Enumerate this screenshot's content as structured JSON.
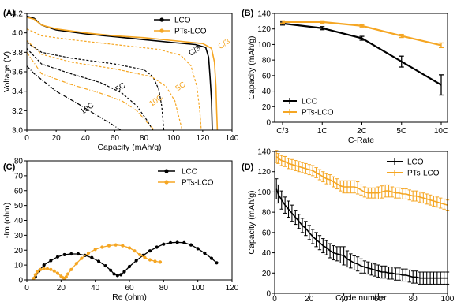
{
  "colors": {
    "lco": "#000000",
    "pts": "#F5A623"
  },
  "chart_data": [
    {
      "panel": "(A)",
      "type": "line",
      "xlabel": "Capacity (mAh/g)",
      "ylabel": "Voltage (V)",
      "xlim": [
        0,
        140
      ],
      "ylim": [
        3.0,
        4.2
      ],
      "xticks": [
        "0",
        "20",
        "40",
        "60",
        "80",
        "100",
        "120",
        "140"
      ],
      "yticks": [
        "3.0",
        "3.2",
        "3.4",
        "3.6",
        "3.8",
        "4.0",
        "4.2"
      ],
      "legend": [
        "LCO",
        "PTs-LCO"
      ],
      "legend_position": "top-right",
      "annotations": [
        {
          "text": "C/3",
          "x": 112,
          "y": 3.76,
          "series": "LCO"
        },
        {
          "text": "C/3",
          "x": 132,
          "y": 3.83,
          "series": "PTs-LCO"
        },
        {
          "text": "5C",
          "x": 62,
          "y": 3.39,
          "series": "LCO"
        },
        {
          "text": "5C",
          "x": 103,
          "y": 3.4,
          "series": "PTs-LCO"
        },
        {
          "text": "10C",
          "x": 38,
          "y": 3.16,
          "series": "LCO"
        },
        {
          "text": "10C",
          "x": 85,
          "y": 3.24,
          "series": "PTs-LCO"
        }
      ],
      "series": [
        {
          "name": "LCO",
          "rate": "C/3",
          "style": "solid",
          "points": [
            [
              0,
              4.17
            ],
            [
              5,
              4.15
            ],
            [
              10,
              4.08
            ],
            [
              20,
              4.03
            ],
            [
              40,
              3.99
            ],
            [
              60,
              3.96
            ],
            [
              80,
              3.93
            ],
            [
              100,
              3.9
            ],
            [
              115,
              3.88
            ],
            [
              122,
              3.85
            ],
            [
              124,
              3.75
            ],
            [
              125,
              3.55
            ],
            [
              126,
              3.3
            ],
            [
              126.5,
              3.0
            ]
          ]
        },
        {
          "name": "PTs-LCO",
          "rate": "C/3",
          "style": "solid",
          "points": [
            [
              0,
              4.16
            ],
            [
              5,
              4.14
            ],
            [
              10,
              4.08
            ],
            [
              20,
              4.04
            ],
            [
              40,
              4.0
            ],
            [
              60,
              3.97
            ],
            [
              80,
              3.95
            ],
            [
              100,
              3.92
            ],
            [
              120,
              3.89
            ],
            [
              126,
              3.84
            ],
            [
              128,
              3.7
            ],
            [
              129,
              3.45
            ],
            [
              129.5,
              3.2
            ],
            [
              130,
              3.0
            ]
          ]
        },
        {
          "name": "PTs-LCO",
          "rate": "",
          "style": "dashed",
          "points": [
            [
              0,
              4.04
            ],
            [
              10,
              3.97
            ],
            [
              30,
              3.93
            ],
            [
              60,
              3.88
            ],
            [
              90,
              3.83
            ],
            [
              105,
              3.77
            ],
            [
              112,
              3.66
            ],
            [
              116,
              3.45
            ],
            [
              118,
              3.2
            ],
            [
              119,
              3.0
            ]
          ]
        },
        {
          "name": "LCO",
          "rate": "",
          "style": "dashed",
          "points": [
            [
              0,
              3.9
            ],
            [
              10,
              3.8
            ],
            [
              30,
              3.74
            ],
            [
              60,
              3.68
            ],
            [
              80,
              3.62
            ],
            [
              86,
              3.55
            ],
            [
              90,
              3.42
            ],
            [
              92,
              3.25
            ],
            [
              93.5,
              3.0
            ]
          ]
        },
        {
          "name": "PTs-LCO",
          "rate": "5C",
          "style": "dashed",
          "points": [
            [
              0,
              3.92
            ],
            [
              10,
              3.78
            ],
            [
              30,
              3.7
            ],
            [
              60,
              3.63
            ],
            [
              85,
              3.55
            ],
            [
              95,
              3.45
            ],
            [
              101,
              3.3
            ],
            [
              104,
              3.12
            ],
            [
              106,
              3.0
            ]
          ]
        },
        {
          "name": "LCO",
          "rate": "5C",
          "style": "dashed",
          "points": [
            [
              0,
              3.84
            ],
            [
              10,
              3.68
            ],
            [
              30,
              3.58
            ],
            [
              50,
              3.49
            ],
            [
              65,
              3.38
            ],
            [
              75,
              3.25
            ],
            [
              82,
              3.1
            ],
            [
              86,
              3.0
            ]
          ]
        },
        {
          "name": "PTs-LCO",
          "rate": "10C",
          "style": "dashdot",
          "points": [
            [
              0,
              3.8
            ],
            [
              10,
              3.58
            ],
            [
              30,
              3.47
            ],
            [
              50,
              3.38
            ],
            [
              65,
              3.3
            ],
            [
              75,
              3.2
            ],
            [
              82,
              3.08
            ],
            [
              87,
              3.0
            ]
          ]
        },
        {
          "name": "LCO",
          "rate": "10C",
          "style": "dashdot",
          "points": [
            [
              0,
              3.66
            ],
            [
              5,
              3.58
            ],
            [
              20,
              3.4
            ],
            [
              35,
              3.27
            ],
            [
              48,
              3.15
            ],
            [
              58,
              3.06
            ],
            [
              64,
              3.0
            ]
          ]
        }
      ]
    },
    {
      "panel": "(B)",
      "type": "line",
      "xlabel": "C-Rate",
      "ylabel": "Capacity (mAh/g)",
      "categories": [
        "C/3",
        "1C",
        "2C",
        "5C",
        "10C"
      ],
      "ylim": [
        0,
        140
      ],
      "yticks": [
        "0",
        "20",
        "40",
        "60",
        "80",
        "100",
        "120",
        "140"
      ],
      "legend_position": "bottom-left",
      "series": [
        {
          "name": "LCO",
          "values": [
            127,
            121,
            108,
            78,
            48
          ],
          "errors": [
            2,
            2,
            2.5,
            7,
            13
          ]
        },
        {
          "name": "PTs-LCO",
          "values": [
            129,
            129,
            124,
            111,
            99
          ],
          "errors": [
            1.5,
            1.5,
            1.5,
            2,
            3
          ]
        }
      ]
    },
    {
      "panel": "(C)",
      "type": "scatter",
      "xlabel": "Re (ohm)",
      "ylabel": "-Im (ohm)",
      "xlim": [
        0,
        120
      ],
      "ylim": [
        0,
        80
      ],
      "xticks": [
        "0",
        "20",
        "40",
        "60",
        "80",
        "100",
        "120"
      ],
      "yticks": [
        "0",
        "10",
        "20",
        "30",
        "40",
        "50",
        "60",
        "70",
        "80"
      ],
      "legend_position": "top-right",
      "series": [
        {
          "name": "LCO",
          "points": [
            [
              5,
              2
            ],
            [
              7,
              6
            ],
            [
              10,
              10
            ],
            [
              14,
              13
            ],
            [
              18,
              15.5
            ],
            [
              22,
              17
            ],
            [
              26,
              17.5
            ],
            [
              30,
              17.5
            ],
            [
              34,
              16.5
            ],
            [
              38,
              15
            ],
            [
              42,
              12.5
            ],
            [
              46,
              9.5
            ],
            [
              49,
              6.5
            ],
            [
              51,
              4
            ],
            [
              53,
              3
            ],
            [
              55,
              3.5
            ],
            [
              57,
              5.5
            ],
            [
              60,
              9
            ],
            [
              64,
              13
            ],
            [
              68,
              16.5
            ],
            [
              72,
              19.5
            ],
            [
              76,
              22
            ],
            [
              80,
              24
            ],
            [
              84,
              25
            ],
            [
              88,
              25.2
            ],
            [
              92,
              25
            ],
            [
              96,
              23.5
            ],
            [
              100,
              21
            ],
            [
              104,
              18
            ],
            [
              108,
              14.5
            ],
            [
              111,
              11.5
            ]
          ]
        },
        {
          "name": "PTs-LCO",
          "points": [
            [
              4,
              1
            ],
            [
              5,
              3.5
            ],
            [
              6,
              5.5
            ],
            [
              8,
              7
            ],
            [
              10,
              7.5
            ],
            [
              12,
              7.5
            ],
            [
              14,
              7
            ],
            [
              16,
              6
            ],
            [
              18,
              4.5
            ],
            [
              20,
              2.5
            ],
            [
              21,
              1.5
            ],
            [
              22,
              1
            ],
            [
              23,
              2
            ],
            [
              24,
              4
            ],
            [
              26,
              7
            ],
            [
              29,
              11
            ],
            [
              32,
              14.5
            ],
            [
              36,
              18
            ],
            [
              40,
              20.5
            ],
            [
              44,
              22
            ],
            [
              48,
              23
            ],
            [
              52,
              23.5
            ],
            [
              56,
              23
            ],
            [
              60,
              21.5
            ],
            [
              63,
              19.5
            ],
            [
              66,
              17
            ],
            [
              69,
              15
            ],
            [
              72,
              13.5
            ],
            [
              75,
              12.5
            ],
            [
              78,
              12
            ]
          ]
        }
      ]
    },
    {
      "panel": "(D)",
      "type": "line",
      "xlabel": "Cycle number",
      "ylabel": "Capacity (mAh/g)",
      "xlim": [
        0,
        100
      ],
      "ylim": [
        0,
        140
      ],
      "xticks": [
        "0",
        "20",
        "40",
        "60",
        "80",
        "100"
      ],
      "yticks": [
        "0",
        "20",
        "40",
        "60",
        "80",
        "100",
        "120",
        "140"
      ],
      "legend_position": "top-right",
      "series": [
        {
          "name": "LCO",
          "x": [
            1,
            2,
            4,
            6,
            8,
            10,
            12,
            14,
            16,
            18,
            20,
            22,
            24,
            26,
            28,
            30,
            32,
            34,
            36,
            38,
            40,
            42,
            44,
            46,
            48,
            50,
            52,
            54,
            56,
            58,
            60,
            62,
            64,
            66,
            68,
            70,
            72,
            74,
            76,
            78,
            80,
            82,
            84,
            86,
            88,
            90,
            92,
            94,
            96,
            98,
            100
          ],
          "values": [
            103,
            98,
            92,
            87,
            83,
            79,
            75,
            71,
            67,
            64,
            60,
            56,
            53,
            50,
            47,
            45,
            42,
            40,
            39,
            38,
            37,
            34,
            32,
            30,
            29,
            27,
            26,
            25,
            24,
            23,
            22,
            21,
            21,
            20,
            20,
            19,
            19,
            18,
            18,
            17,
            16,
            16,
            15,
            15,
            15,
            15,
            15,
            15,
            15,
            15,
            15
          ],
          "errors": [
            10,
            9,
            9,
            8,
            8,
            8,
            7,
            7,
            7,
            7,
            7,
            7,
            7,
            7,
            7,
            7,
            7,
            7,
            7,
            8,
            9,
            8,
            7,
            7,
            7,
            7,
            6,
            6,
            6,
            6,
            6,
            6,
            6,
            6,
            6,
            6,
            6,
            6,
            6,
            6,
            6,
            6,
            6,
            6,
            6,
            6,
            6,
            6,
            6,
            6,
            6
          ]
        },
        {
          "name": "PTs-LCO",
          "x": [
            1,
            2,
            4,
            6,
            8,
            10,
            12,
            14,
            16,
            18,
            20,
            22,
            24,
            26,
            28,
            30,
            32,
            34,
            36,
            38,
            40,
            42,
            44,
            46,
            48,
            50,
            52,
            54,
            56,
            58,
            60,
            62,
            64,
            66,
            68,
            70,
            72,
            74,
            76,
            78,
            80,
            82,
            84,
            86,
            88,
            90,
            92,
            94,
            96,
            98,
            100
          ],
          "values": [
            135,
            133,
            131,
            130,
            128,
            127,
            126,
            125,
            124,
            123,
            122,
            121,
            119,
            117,
            115,
            113,
            112,
            110,
            108,
            106,
            105,
            105,
            105,
            105,
            104,
            102,
            100,
            99,
            99,
            99,
            99,
            100,
            101,
            101,
            100,
            99,
            99,
            98,
            98,
            97,
            96,
            96,
            95,
            94,
            93,
            92,
            91,
            90,
            89,
            88,
            87
          ],
          "errors": [
            6,
            5,
            5,
            5,
            5,
            5,
            5,
            5,
            5,
            5,
            5,
            5,
            5,
            5,
            5,
            5,
            5,
            5,
            5,
            5,
            6,
            6,
            6,
            6,
            6,
            5,
            5,
            5,
            5,
            5,
            6,
            6,
            6,
            6,
            5,
            5,
            5,
            5,
            5,
            5,
            5,
            5,
            5,
            5,
            5,
            5,
            5,
            5,
            5,
            5,
            5
          ]
        }
      ]
    }
  ]
}
